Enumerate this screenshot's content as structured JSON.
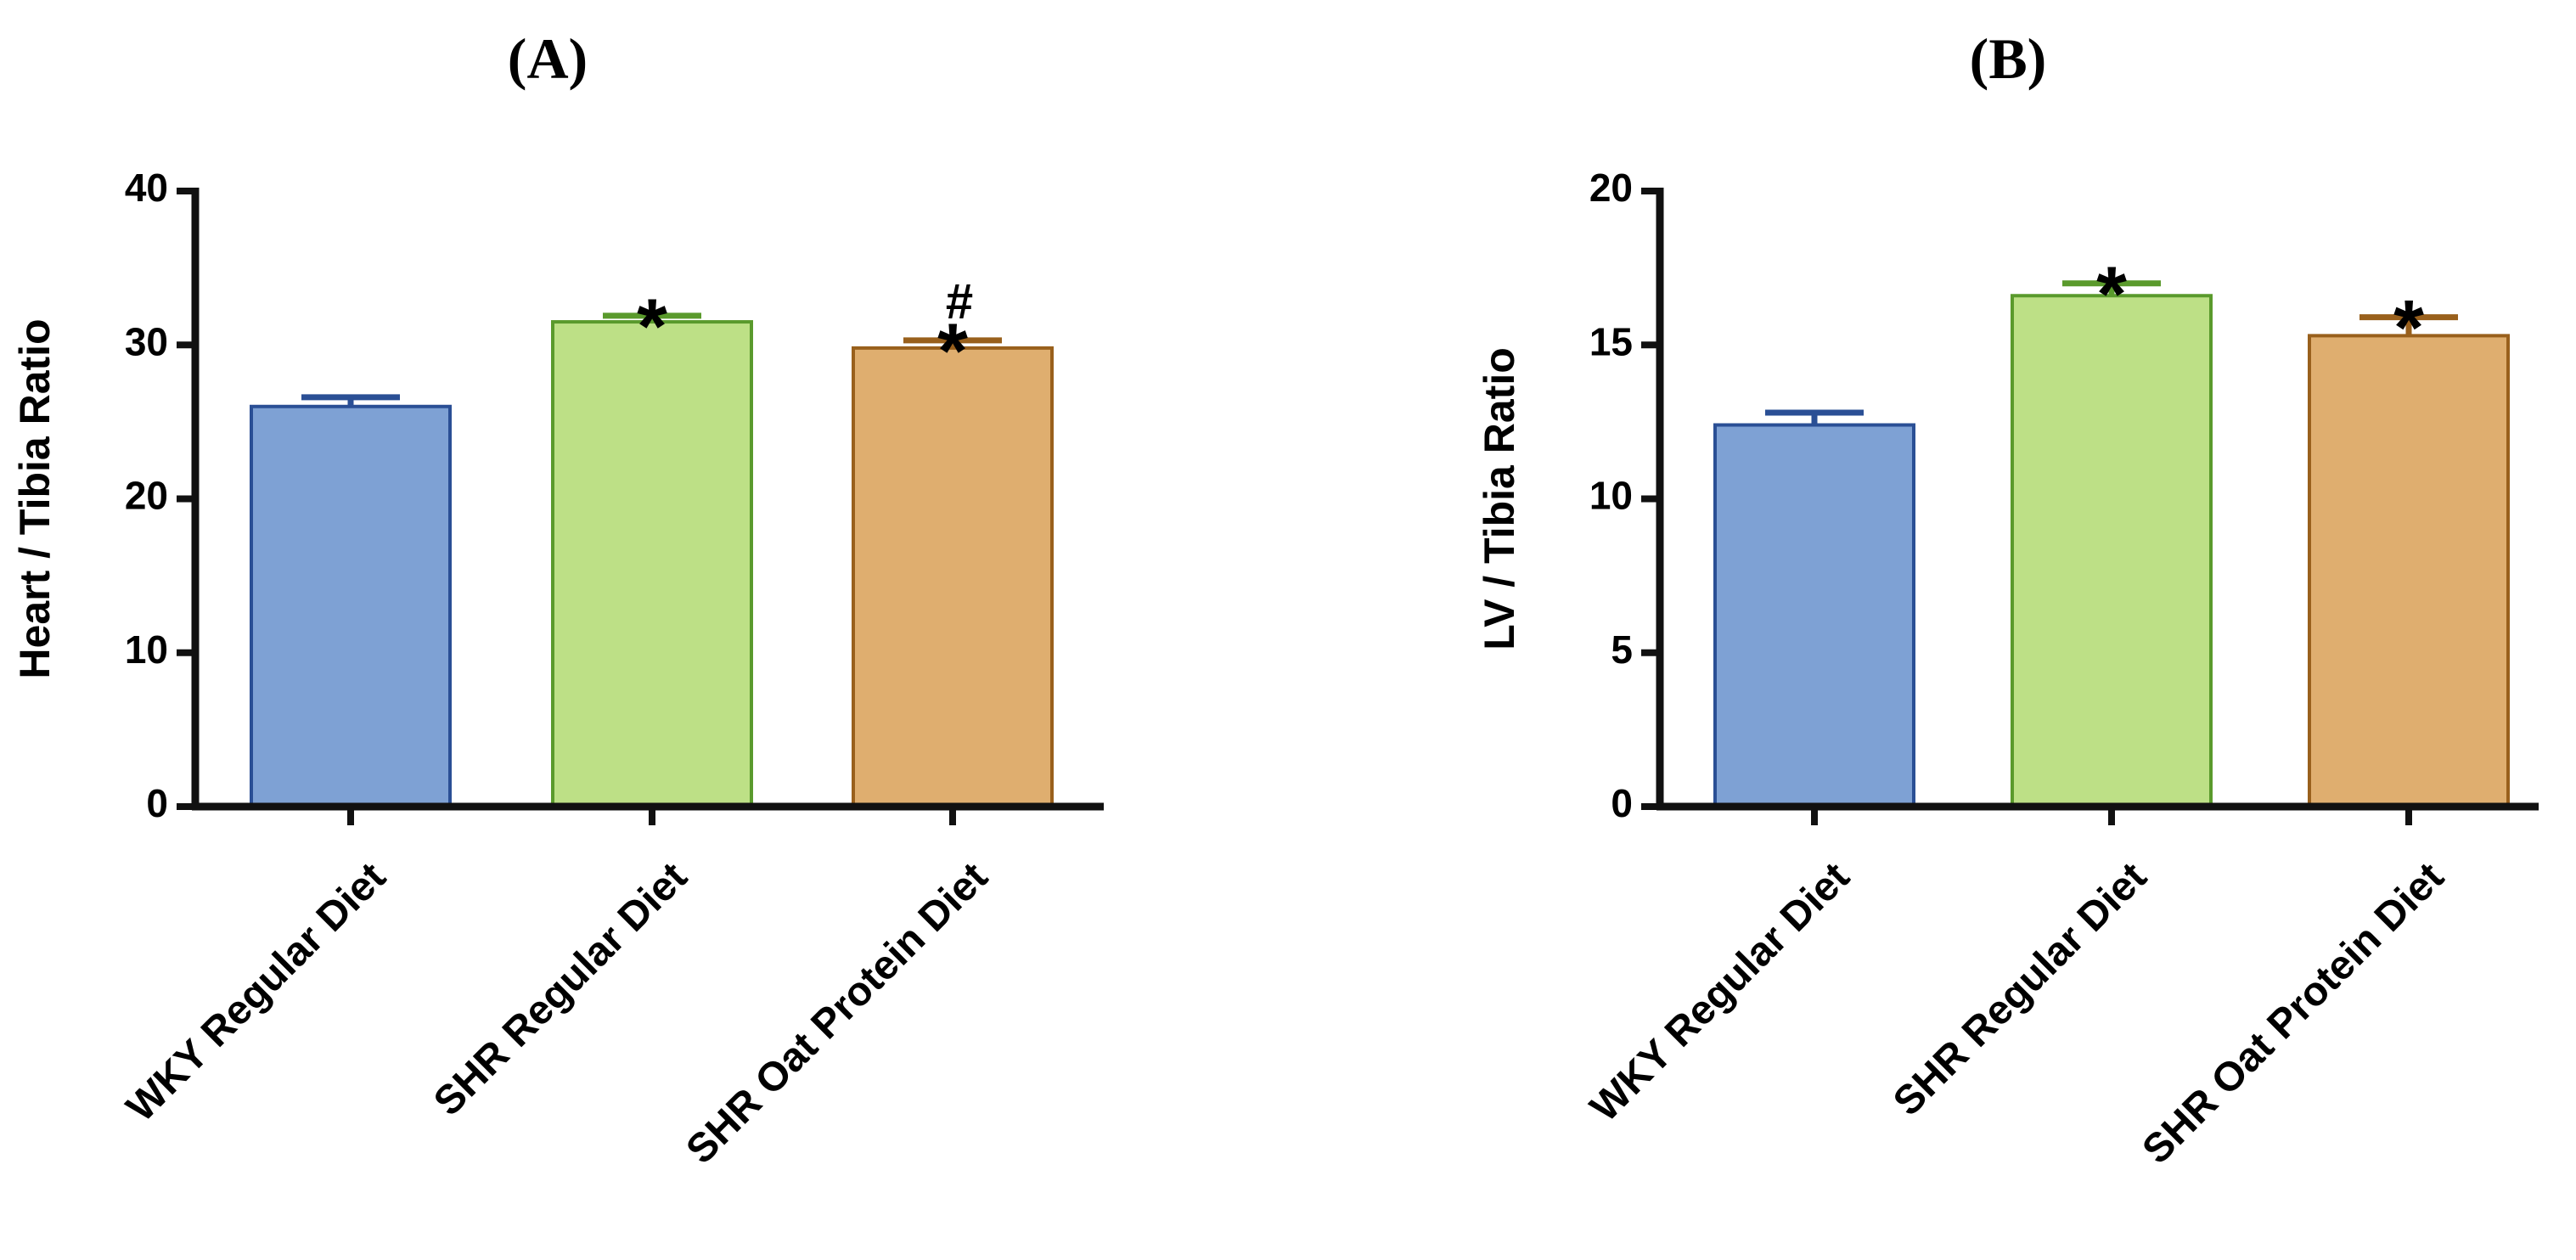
{
  "chart_data": [
    {
      "type": "bar",
      "panel_label": "(A)",
      "title": "",
      "xlabel": "",
      "ylabel": "Heart / Tibia Ratio",
      "ylim": [
        0,
        40
      ],
      "yticks": [
        "0",
        "10",
        "20",
        "30",
        "40"
      ],
      "categories": [
        "WKY Regular Diet",
        "SHR Regular Diet",
        "SHR Oat Protein Diet"
      ],
      "values": [
        26,
        31.5,
        29.8
      ],
      "errors": [
        0.6,
        0.4,
        0.5
      ],
      "colors": [
        "#7ea1d4",
        "#bde086",
        "#dfae6f"
      ],
      "edge_colors": [
        "#2a4f95",
        "#5a9a2c",
        "#99601c"
      ],
      "annotations": [
        [],
        [
          "*"
        ],
        [
          "*",
          "#"
        ]
      ]
    },
    {
      "type": "bar",
      "panel_label": "(B)",
      "title": "",
      "xlabel": "",
      "ylabel": "LV / Tibia Ratio",
      "ylim": [
        0,
        20
      ],
      "yticks": [
        "0",
        "5",
        "10",
        "15",
        "20"
      ],
      "categories": [
        "WKY Regular Diet",
        "SHR Regular Diet",
        "SHR Oat Protein Diet"
      ],
      "values": [
        12.4,
        16.6,
        15.3
      ],
      "errors": [
        0.4,
        0.4,
        0.6
      ],
      "colors": [
        "#7ea1d4",
        "#bde086",
        "#dfae6f"
      ],
      "edge_colors": [
        "#2a4f95",
        "#5a9a2c",
        "#99601c"
      ],
      "annotations": [
        [],
        [
          "*"
        ],
        [
          "*"
        ]
      ]
    }
  ]
}
